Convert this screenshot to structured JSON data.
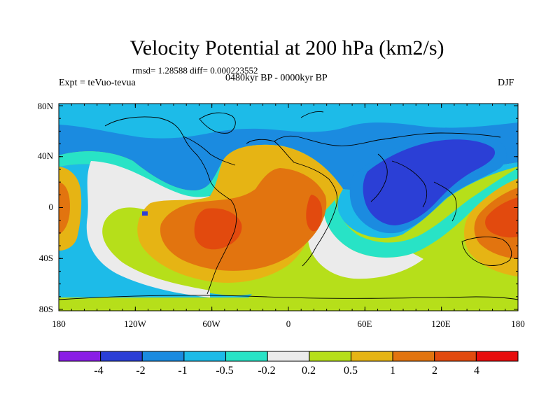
{
  "title": "Velocity Potential at 200 hPa (km2/s)",
  "stats": "rmsd= 1.28588 diff= 0.000223552",
  "expt": "Expt = teVuo-tevua",
  "period": "0480kyr BP - 0000kyr BP",
  "season": "DJF",
  "lat_labels": [
    "80N",
    "40N",
    "0",
    "40S",
    "80S"
  ],
  "lon_labels": [
    "180",
    "120W",
    "60W",
    "0",
    "60E",
    "120E",
    "180"
  ],
  "colorbar": {
    "labels": [
      "-4",
      "-2",
      "-1",
      "-0.5",
      "-0.2",
      "0.2",
      "0.5",
      "1",
      "2",
      "4"
    ],
    "colors": [
      "#8a1ee6",
      "#2b3fd6",
      "#1b8be0",
      "#1dbbe8",
      "#28e3c6",
      "#ebebeb",
      "#b6df1a",
      "#e6b414",
      "#e2740f",
      "#e24a0e",
      "#e80d0d"
    ]
  }
}
